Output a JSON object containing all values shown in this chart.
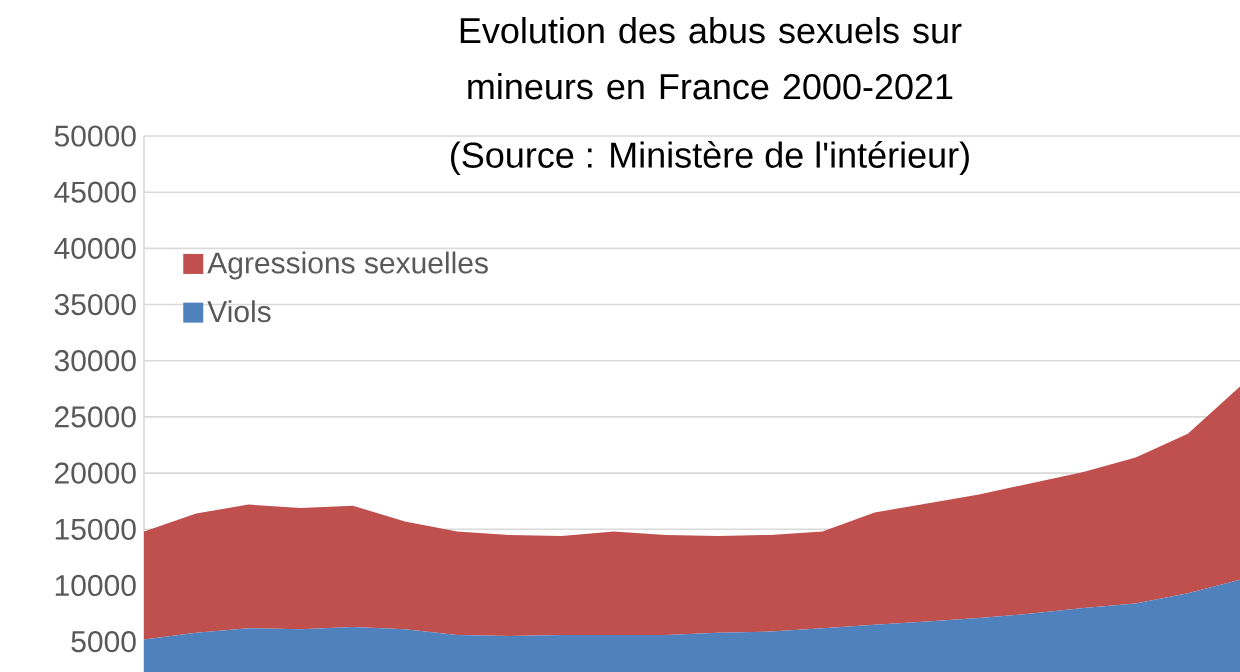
{
  "chart_data": {
    "type": "area",
    "title": "Evolution des abus sexuels sur mineurs en France 2000-2021",
    "subtitle": "(Source : Ministère de l'intérieur)",
    "categories": [
      null,
      null,
      null,
      null,
      null,
      null,
      null,
      null,
      null,
      null,
      null,
      null,
      null,
      null,
      null,
      null,
      null,
      null,
      null,
      null,
      null,
      null
    ],
    "series": [
      {
        "name": "Viols",
        "color": "#4f81bd",
        "values": [
          5200,
          5800,
          6200,
          6100,
          6300,
          6100,
          5600,
          5500,
          5600,
          5600,
          5600,
          5800,
          5900,
          6200,
          6500,
          6800,
          7100,
          7500,
          8000,
          8400,
          9300,
          10500
        ]
      },
      {
        "name": "Agressions sexuelles",
        "color": "#c0504d",
        "values": [
          9600,
          10600,
          11000,
          10800,
          10800,
          9600,
          9200,
          9000,
          8800,
          9200,
          8900,
          8600,
          8600,
          8600,
          10000,
          10500,
          11000,
          11600,
          12100,
          13000,
          14200,
          17200
        ]
      }
    ],
    "stacked": true,
    "ylim": [
      2300,
      50000
    ],
    "yticks": [
      5000,
      10000,
      15000,
      20000,
      25000,
      30000,
      35000,
      40000,
      45000,
      50000
    ],
    "grid": "y",
    "legend": "top left",
    "tick_labels": "y"
  }
}
